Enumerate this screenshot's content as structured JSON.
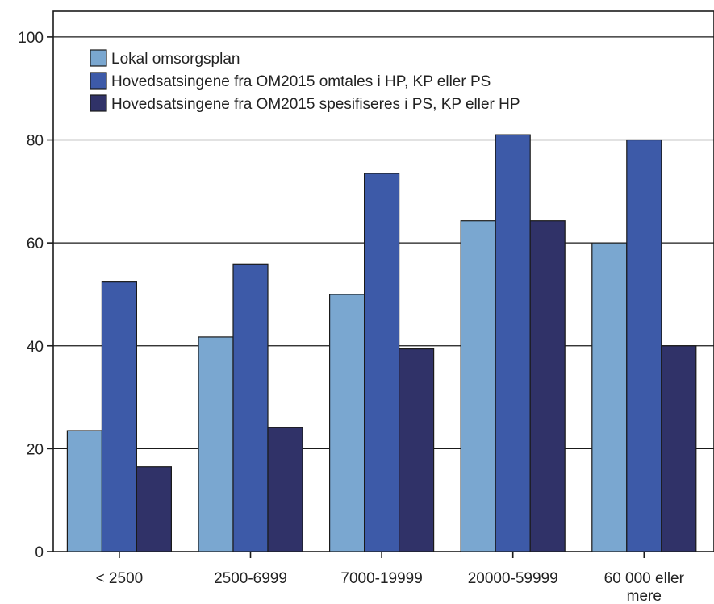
{
  "chart_data": {
    "type": "bar",
    "categories": [
      "< 2500",
      "2500-6999",
      "7000-19999",
      "20000-59999",
      "60 000 eller mere"
    ],
    "series": [
      {
        "name": "Lokal omsorgsplan",
        "values": [
          23.5,
          41.7,
          50.0,
          64.3,
          60.0
        ],
        "color": "#7aa7d0"
      },
      {
        "name": "Hovedsatsingene fra OM2015 omtales i HP, KP eller PS",
        "values": [
          52.4,
          55.9,
          73.5,
          81.0,
          80.0
        ],
        "color": "#3d5aa8"
      },
      {
        "name": "Hovedsatsingene fra OM2015 spesifiseres i PS, KP eller HP",
        "values": [
          16.5,
          24.1,
          39.4,
          64.3,
          40.0
        ],
        "color": "#303268"
      }
    ],
    "yticks": [
      0,
      20,
      40,
      60,
      80,
      100
    ],
    "ylim": [
      0,
      105
    ],
    "grid": true,
    "legend_position": "top-left",
    "title": "",
    "xlabel": "",
    "ylabel": ""
  }
}
